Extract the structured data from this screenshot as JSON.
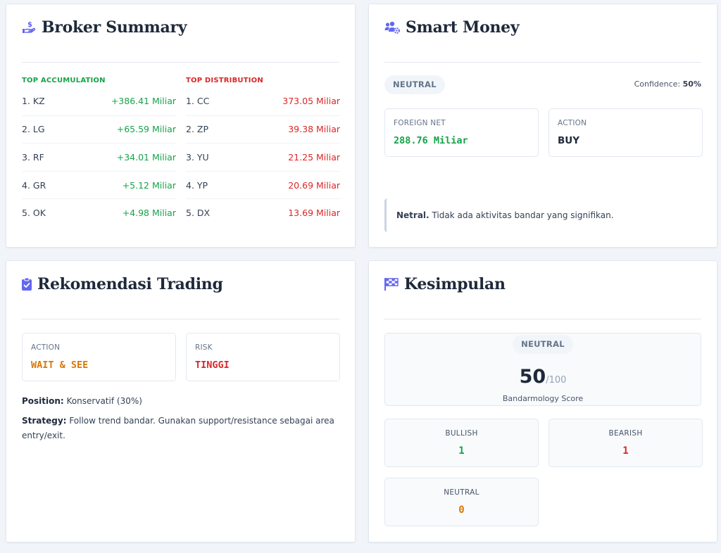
{
  "broker_summary": {
    "title": "Broker Summary",
    "accumulation_header": "TOP ACCUMULATION",
    "distribution_header": "TOP DISTRIBUTION",
    "accumulation": [
      {
        "name": "1. KZ",
        "value": "+386.41 Miliar"
      },
      {
        "name": "2. LG",
        "value": "+65.59 Miliar"
      },
      {
        "name": "3. RF",
        "value": "+34.01 Miliar"
      },
      {
        "name": "4. GR",
        "value": "+5.12 Miliar"
      },
      {
        "name": "5. OK",
        "value": "+4.98 Miliar"
      }
    ],
    "distribution": [
      {
        "name": "1. CC",
        "value": "373.05 Miliar"
      },
      {
        "name": "2. ZP",
        "value": "39.38 Miliar"
      },
      {
        "name": "3. YU",
        "value": "21.25 Miliar"
      },
      {
        "name": "4. YP",
        "value": "20.69 Miliar"
      },
      {
        "name": "5. DX",
        "value": "13.69 Miliar"
      }
    ]
  },
  "smart_money": {
    "title": "Smart Money",
    "badge": "NEUTRAL",
    "confidence_label": "Confidence:",
    "confidence_value": "50%",
    "foreign_net_label": "FOREIGN NET",
    "foreign_net_value": "288.76 Miliar",
    "action_label": "ACTION",
    "action_value": "BUY",
    "note_bold": "Netral.",
    "note_text": "Tidak ada aktivitas bandar yang signifikan."
  },
  "rekomendasi": {
    "title": "Rekomendasi Trading",
    "action_label": "ACTION",
    "action_value": "WAIT & SEE",
    "risk_label": "RISK",
    "risk_value": "TINGGI",
    "position_label": "Position:",
    "position_value": "Konservatif (30%)",
    "strategy_label": "Strategy:",
    "strategy_value": "Follow trend bandar. Gunakan support/resistance sebagai area entry/exit."
  },
  "kesimpulan": {
    "title": "Kesimpulan",
    "badge": "NEUTRAL",
    "score": "50",
    "score_max": "/100",
    "score_label": "Bandarmology Score",
    "bullish_label": "BULLISH",
    "bullish_value": "1",
    "bearish_label": "BEARISH",
    "bearish_value": "1",
    "neutral_label": "NEUTRAL",
    "neutral_value": "0"
  },
  "colors": {
    "accent_icon": "#6366f1",
    "positive": "#16a34a",
    "negative": "#dc2626",
    "warning": "#d97706"
  },
  "icons": {
    "broker_summary": "hand-money-icon",
    "smart_money": "users-gear-icon",
    "rekomendasi": "clipboard-check-icon",
    "kesimpulan": "checkered-flag-icon"
  }
}
